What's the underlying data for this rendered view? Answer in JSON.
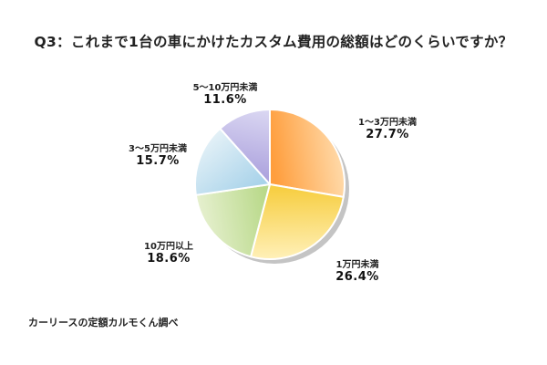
{
  "title": "Q3：これまで1台の車にかけたカスタム費用の総額はどのくらいですか？",
  "source": "カーリースの定額カルモくん調べ",
  "chart_data": {
    "type": "pie",
    "title": "Q3：これまで1台の車にかけたカスタム費用の総額はどのくらいですか？",
    "start_angle": "12 o'clock",
    "direction": "clockwise",
    "unit": "%",
    "categories": [
      "1~3万円未満",
      "1万円未満",
      "10万円以上",
      "3~5万円未満",
      "5~10万円未満"
    ],
    "values": [
      27.7,
      26.4,
      18.6,
      15.7,
      11.6
    ],
    "slices": [
      {
        "label": "1～3万円未満",
        "value": 27.7,
        "pct_text": "27.7%",
        "color_light": "#ffd9a8",
        "color_dark": "#ff9e3d"
      },
      {
        "label": "1万円未満",
        "value": 26.4,
        "pct_text": "26.4%",
        "color_light": "#fff0b8",
        "color_dark": "#f7cf45"
      },
      {
        "label": "10万円以上",
        "value": 18.6,
        "pct_text": "18.6%",
        "color_light": "#e6f0cf",
        "color_dark": "#b9d98a"
      },
      {
        "label": "3～5万円未満",
        "value": 15.7,
        "pct_text": "15.7%",
        "color_light": "#e4f1f7",
        "color_dark": "#a9d3ea"
      },
      {
        "label": "5～10万円未満",
        "value": 11.6,
        "pct_text": "11.6%",
        "color_light": "#dcd9f3",
        "color_dark": "#aea4de"
      }
    ],
    "legend": "none (direct labels)",
    "shadow_color": "#c4c4c4"
  }
}
